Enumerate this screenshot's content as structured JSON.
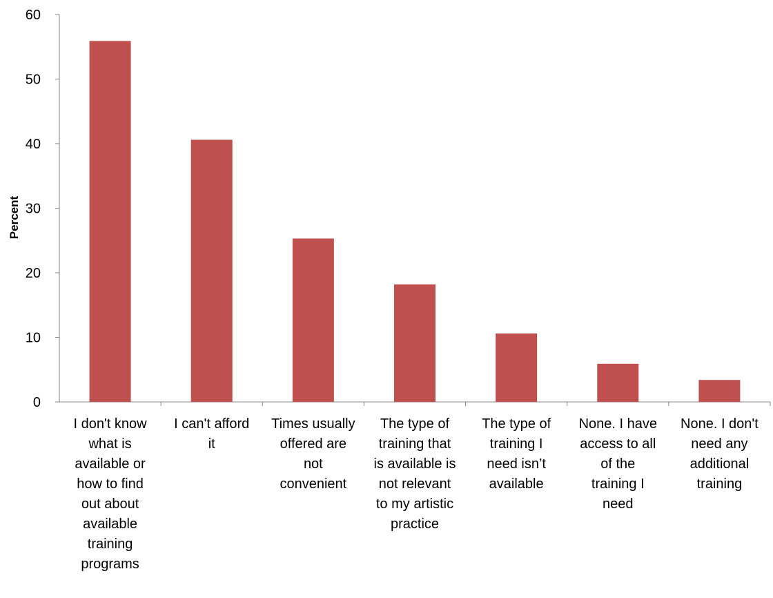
{
  "chart_data": {
    "type": "bar",
    "title": "",
    "xlabel": "",
    "ylabel": "Percent",
    "ylim": [
      0,
      60
    ],
    "yticks": [
      0,
      10,
      20,
      30,
      40,
      50,
      60
    ],
    "grid": false,
    "legend": "none",
    "bar_color": "#C0504D",
    "axis_color": "#868686",
    "text_color": "#000000",
    "categories": [
      "I don't know what is available or how to find out about available training programs",
      "I can't afford it",
      "Times usually offered are not convenient",
      "The type of training that is available is not relevant to my artistic practice",
      "The type of training I need isn’t available",
      "None. I have access to all of the training I need",
      "None. I don't need any additional training"
    ],
    "category_lines": [
      [
        "I don't know",
        "what is",
        "available or",
        "how to find",
        "out about",
        "available",
        "training",
        "programs"
      ],
      [
        "I can't afford",
        "it"
      ],
      [
        "Times usually",
        "offered are",
        "not",
        "convenient"
      ],
      [
        "The type of",
        "training that",
        "is available is",
        "not relevant",
        "to my artistic",
        "practice"
      ],
      [
        "The type of",
        "training I",
        "need isn’t",
        "available"
      ],
      [
        "None. I have",
        "access to all",
        "of the",
        "training I",
        "need"
      ],
      [
        "None. I don't",
        "need any",
        "additional",
        "training"
      ]
    ],
    "values": [
      55.9,
      40.6,
      25.3,
      18.2,
      10.6,
      5.9,
      3.4
    ]
  }
}
